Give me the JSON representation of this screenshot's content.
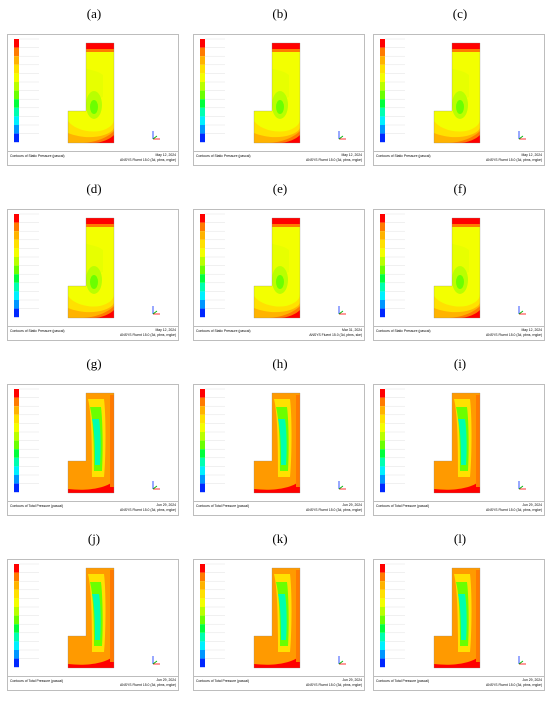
{
  "legend_colors": [
    "#ff0000",
    "#ff7a00",
    "#ffb300",
    "#ffe100",
    "#f3ff00",
    "#b9ff00",
    "#6bff00",
    "#00ff3c",
    "#00ffb0",
    "#00f0ff",
    "#0096ff",
    "#0028ff"
  ],
  "cells": [
    {
      "label": "(a)",
      "variant": "static",
      "title": "Contours of Static Pressure (pascal)",
      "date": "May 12, 2024",
      "software": "ANSYS Fluent 15.0 (3d, pbns, rngke)"
    },
    {
      "label": "(b)",
      "variant": "static",
      "title": "Contours of Static Pressure (pascal)",
      "date": "May 12, 2024",
      "software": "ANSYS Fluent 15.0 (3d, pbns, rngke)"
    },
    {
      "label": "(c)",
      "variant": "static",
      "title": "Contours of Static Pressure (pascal)",
      "date": "May 12, 2024",
      "software": "ANSYS Fluent 15.0 (3d, pbns, rngke)"
    },
    {
      "label": "(d)",
      "variant": "static",
      "title": "Contours of Static Pressure (pascal)",
      "date": "May 12, 2024",
      "software": "ANSYS Fluent 15.0 (3d, pbns, rngke)"
    },
    {
      "label": "(e)",
      "variant": "static",
      "title": "Contours of Static Pressure (pascal)",
      "date": "Mar 31, 2024",
      "software": "ANSYS Fluent 15.0 (3d, pbns, ske)"
    },
    {
      "label": "(f)",
      "variant": "static",
      "title": "Contours of Static Pressure (pascal)",
      "date": "May 12, 2024",
      "software": "ANSYS Fluent 15.0 (3d, pbns, rngke)"
    },
    {
      "label": "(g)",
      "variant": "total",
      "title": "Contours of Total Pressure (pascal)",
      "date": "Jun 29, 2024",
      "software": "ANSYS Fluent 15.0 (3d, pbns, rngke)"
    },
    {
      "label": "(h)",
      "variant": "total",
      "title": "Contours of Total Pressure (pascal)",
      "date": "Jun 29, 2024",
      "software": "ANSYS Fluent 15.0 (3d, pbns, rngke)"
    },
    {
      "label": "(i)",
      "variant": "total",
      "title": "Contours of Total Pressure (pascal)",
      "date": "Jun 29, 2024",
      "software": "ANSYS Fluent 15.0 (3d, pbns, rngke)"
    },
    {
      "label": "(j)",
      "variant": "total",
      "title": "Contours of Total Pressure (pascal)",
      "date": "Jun 29, 2024",
      "software": "ANSYS Fluent 15.0 (3d, pbns, rngke)"
    },
    {
      "label": "(k)",
      "variant": "total",
      "title": "Contours of Total Pressure (pascal)",
      "date": "Jun 29, 2024",
      "software": "ANSYS Fluent 15.0 (3d, pbns, rngke)"
    },
    {
      "label": "(l)",
      "variant": "total",
      "title": "Contours of Total Pressure (pascal)",
      "date": "Jun 29, 2024",
      "software": "ANSYS Fluent 15.0 (3d, pbns, rngke)"
    }
  ]
}
